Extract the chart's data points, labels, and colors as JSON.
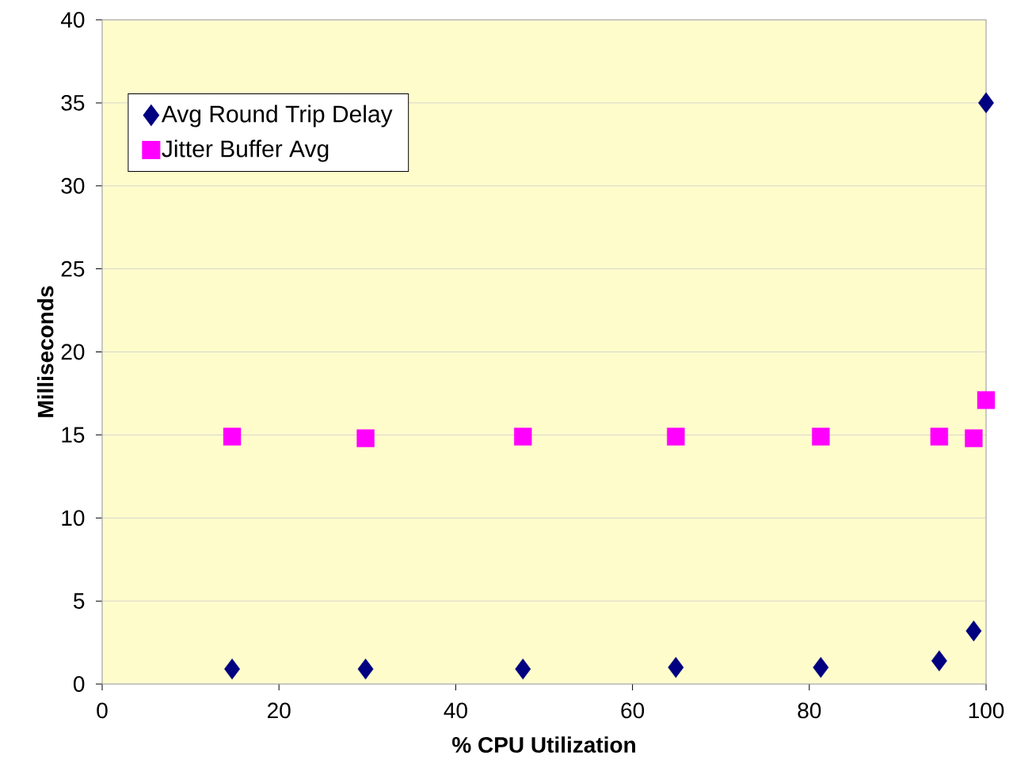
{
  "chart_data": {
    "type": "scatter",
    "xlabel": "% CPU Utilization",
    "ylabel": "Milliseconds",
    "x": [
      14.7,
      29.8,
      47.6,
      64.9,
      81.3,
      94.7,
      98.6,
      100
    ],
    "series": [
      {
        "name": "Avg Round Trip Delay",
        "color": "#000080",
        "marker": "diamond",
        "values": [
          0.9,
          0.9,
          0.9,
          1.0,
          1.0,
          1.4,
          3.2,
          35.0
        ]
      },
      {
        "name": "Jitter Buffer Avg",
        "color": "#ff00ff",
        "marker": "square",
        "values": [
          14.9,
          14.8,
          14.9,
          14.9,
          14.9,
          14.9,
          14.8,
          17.1
        ]
      }
    ],
    "xlim": [
      0,
      100
    ],
    "xticks": [
      0,
      20,
      40,
      60,
      80,
      100
    ],
    "ylim": [
      0,
      40
    ],
    "yticks": [
      0,
      5,
      10,
      15,
      20,
      25,
      30,
      35,
      40
    ],
    "grid": "y",
    "legend": "top left"
  }
}
